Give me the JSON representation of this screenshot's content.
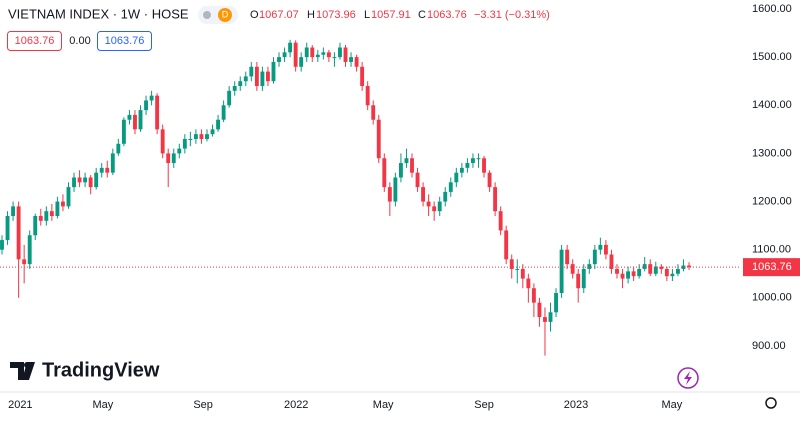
{
  "header": {
    "title": "VIETNAM INDEX · 1W · HOSE",
    "badge": "D",
    "o_label": "O",
    "h_label": "H",
    "l_label": "L",
    "c_label": "C",
    "change": "−3.31 (−0.31%)",
    "sell": "1063.76",
    "spread": "0.00",
    "buy": "1063.76"
  },
  "logo": "TradingView",
  "chart_data": {
    "type": "candlestick",
    "up_color": "#089981",
    "down_color": "#f23645",
    "grid": false,
    "ylim": [
      804.4,
      1618.7
    ],
    "yticks": [
      {
        "value": 900,
        "label": "900.00"
      },
      {
        "value": 1000,
        "label": "1000.00"
      },
      {
        "value": 1100,
        "label": "1100.00"
      },
      {
        "value": 1200,
        "label": "1200.00"
      },
      {
        "value": 1300,
        "label": "1300.00"
      },
      {
        "value": 1400,
        "label": "1400.00"
      },
      {
        "value": 1500,
        "label": "1500.00"
      },
      {
        "value": 1600,
        "label": "1600.00"
      }
    ],
    "xlim": [
      -0.36,
      133.2
    ],
    "xticks": [
      {
        "value": 1.1,
        "label": "2021"
      },
      {
        "value": 18.2,
        "label": "May"
      },
      {
        "value": 36.3,
        "label": "Sep"
      },
      {
        "value": 53.1,
        "label": "2022"
      },
      {
        "value": 68.8,
        "label": "May"
      },
      {
        "value": 87.0,
        "label": "Sep"
      },
      {
        "value": 103.6,
        "label": "2023"
      },
      {
        "value": 120.9,
        "label": "May"
      }
    ],
    "ohlc": [
      [
        1100,
        1130,
        1090,
        1120
      ],
      [
        1120,
        1180,
        1110,
        1170
      ],
      [
        1170,
        1200,
        1160,
        1190
      ],
      [
        1190,
        1200,
        1000,
        1080
      ],
      [
        1080,
        1110,
        1030,
        1070
      ],
      [
        1070,
        1140,
        1060,
        1130
      ],
      [
        1130,
        1175,
        1120,
        1170
      ],
      [
        1170,
        1185,
        1150,
        1160
      ],
      [
        1160,
        1190,
        1150,
        1180
      ],
      [
        1180,
        1195,
        1160,
        1170
      ],
      [
        1170,
        1210,
        1165,
        1200
      ],
      [
        1200,
        1215,
        1180,
        1190
      ],
      [
        1190,
        1240,
        1185,
        1230
      ],
      [
        1230,
        1260,
        1220,
        1250
      ],
      [
        1250,
        1265,
        1230,
        1240
      ],
      [
        1240,
        1260,
        1230,
        1250
      ],
      [
        1250,
        1255,
        1215,
        1230
      ],
      [
        1230,
        1270,
        1225,
        1260
      ],
      [
        1260,
        1280,
        1250,
        1270
      ],
      [
        1270,
        1285,
        1250,
        1260
      ],
      [
        1260,
        1310,
        1255,
        1300
      ],
      [
        1300,
        1330,
        1295,
        1320
      ],
      [
        1320,
        1375,
        1315,
        1370
      ],
      [
        1370,
        1390,
        1360,
        1380
      ],
      [
        1380,
        1390,
        1340,
        1350
      ],
      [
        1350,
        1400,
        1345,
        1390
      ],
      [
        1390,
        1420,
        1380,
        1410
      ],
      [
        1410,
        1430,
        1400,
        1420
      ],
      [
        1420,
        1425,
        1340,
        1350
      ],
      [
        1350,
        1360,
        1290,
        1300
      ],
      [
        1300,
        1310,
        1230,
        1280
      ],
      [
        1280,
        1310,
        1270,
        1300
      ],
      [
        1300,
        1320,
        1290,
        1310
      ],
      [
        1310,
        1340,
        1300,
        1330
      ],
      [
        1330,
        1345,
        1315,
        1330
      ],
      [
        1330,
        1350,
        1320,
        1340
      ],
      [
        1340,
        1350,
        1320,
        1330
      ],
      [
        1330,
        1350,
        1325,
        1340
      ],
      [
        1340,
        1360,
        1335,
        1350
      ],
      [
        1350,
        1380,
        1345,
        1370
      ],
      [
        1370,
        1410,
        1365,
        1400
      ],
      [
        1400,
        1440,
        1395,
        1430
      ],
      [
        1430,
        1450,
        1420,
        1440
      ],
      [
        1440,
        1460,
        1430,
        1450
      ],
      [
        1450,
        1470,
        1440,
        1460
      ],
      [
        1460,
        1490,
        1450,
        1480
      ],
      [
        1480,
        1490,
        1430,
        1440
      ],
      [
        1440,
        1480,
        1430,
        1470
      ],
      [
        1470,
        1480,
        1440,
        1450
      ],
      [
        1450,
        1500,
        1445,
        1490
      ],
      [
        1490,
        1510,
        1480,
        1500
      ],
      [
        1500,
        1520,
        1490,
        1510
      ],
      [
        1510,
        1536,
        1500,
        1530
      ],
      [
        1530,
        1535,
        1470,
        1480
      ],
      [
        1480,
        1510,
        1470,
        1500
      ],
      [
        1500,
        1530,
        1490,
        1520
      ],
      [
        1520,
        1525,
        1490,
        1500
      ],
      [
        1500,
        1515,
        1490,
        1505
      ],
      [
        1505,
        1520,
        1495,
        1510
      ],
      [
        1510,
        1515,
        1490,
        1500
      ],
      [
        1500,
        1510,
        1480,
        1500
      ],
      [
        1500,
        1530,
        1495,
        1520
      ],
      [
        1520,
        1525,
        1480,
        1490
      ],
      [
        1490,
        1510,
        1480,
        1500
      ],
      [
        1500,
        1505,
        1470,
        1480
      ],
      [
        1480,
        1490,
        1430,
        1440
      ],
      [
        1440,
        1450,
        1390,
        1400
      ],
      [
        1400,
        1410,
        1360,
        1370
      ],
      [
        1370,
        1380,
        1280,
        1290
      ],
      [
        1290,
        1300,
        1220,
        1230
      ],
      [
        1230,
        1240,
        1170,
        1200
      ],
      [
        1200,
        1260,
        1190,
        1250
      ],
      [
        1250,
        1300,
        1240,
        1280
      ],
      [
        1280,
        1310,
        1270,
        1290
      ],
      [
        1290,
        1300,
        1250,
        1260
      ],
      [
        1260,
        1270,
        1220,
        1230
      ],
      [
        1230,
        1240,
        1190,
        1200
      ],
      [
        1200,
        1215,
        1170,
        1190
      ],
      [
        1190,
        1200,
        1160,
        1180
      ],
      [
        1180,
        1210,
        1170,
        1200
      ],
      [
        1200,
        1230,
        1190,
        1220
      ],
      [
        1220,
        1250,
        1210,
        1240
      ],
      [
        1240,
        1270,
        1230,
        1260
      ],
      [
        1260,
        1280,
        1250,
        1270
      ],
      [
        1270,
        1290,
        1260,
        1280
      ],
      [
        1280,
        1300,
        1270,
        1290
      ],
      [
        1290,
        1300,
        1270,
        1290
      ],
      [
        1290,
        1295,
        1250,
        1260
      ],
      [
        1260,
        1265,
        1220,
        1230
      ],
      [
        1230,
        1240,
        1170,
        1180
      ],
      [
        1180,
        1190,
        1130,
        1140
      ],
      [
        1140,
        1150,
        1070,
        1080
      ],
      [
        1080,
        1090,
        1040,
        1060
      ],
      [
        1060,
        1080,
        1030,
        1060
      ],
      [
        1060,
        1070,
        1020,
        1040
      ],
      [
        1040,
        1050,
        990,
        1020
      ],
      [
        1020,
        1030,
        960,
        990
      ],
      [
        990,
        1000,
        940,
        960
      ],
      [
        960,
        980,
        880,
        950
      ],
      [
        950,
        990,
        930,
        970
      ],
      [
        970,
        1020,
        960,
        1010
      ],
      [
        1010,
        1110,
        1000,
        1100
      ],
      [
        1100,
        1110,
        1060,
        1070
      ],
      [
        1070,
        1080,
        1040,
        1050
      ],
      [
        1050,
        1060,
        990,
        1020
      ],
      [
        1020,
        1070,
        1010,
        1060
      ],
      [
        1060,
        1080,
        1050,
        1070
      ],
      [
        1070,
        1110,
        1060,
        1100
      ],
      [
        1100,
        1125,
        1090,
        1110
      ],
      [
        1110,
        1120,
        1080,
        1090
      ],
      [
        1090,
        1100,
        1050,
        1060
      ],
      [
        1060,
        1070,
        1040,
        1050
      ],
      [
        1050,
        1060,
        1020,
        1040
      ],
      [
        1040,
        1065,
        1030,
        1055
      ],
      [
        1055,
        1065,
        1035,
        1045
      ],
      [
        1045,
        1070,
        1040,
        1060
      ],
      [
        1060,
        1085,
        1055,
        1070
      ],
      [
        1070,
        1080,
        1045,
        1050
      ],
      [
        1050,
        1075,
        1045,
        1065
      ],
      [
        1065,
        1070,
        1050,
        1060
      ],
      [
        1060,
        1065,
        1035,
        1045
      ],
      [
        1045,
        1060,
        1035,
        1050
      ],
      [
        1050,
        1070,
        1045,
        1060
      ],
      [
        1060,
        1080,
        1055,
        1067.07
      ],
      [
        1067.07,
        1073.96,
        1057.91,
        1063.76
      ]
    ]
  }
}
